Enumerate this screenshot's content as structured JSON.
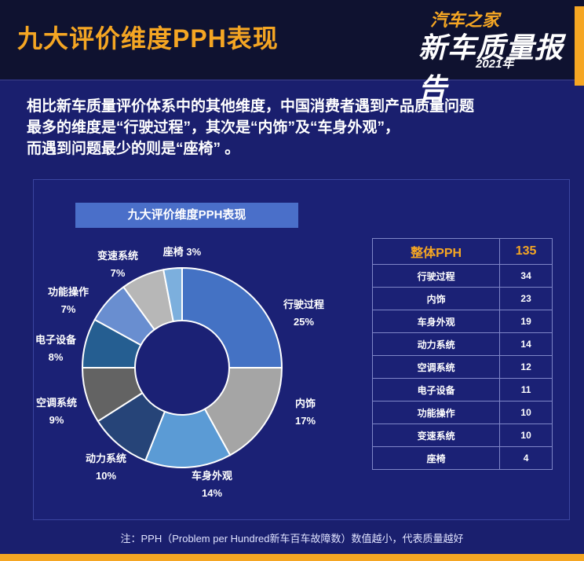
{
  "header": {
    "title": "九大评价维度PPH表现",
    "brand_sub": "汽车之家",
    "brand_main": "新车质量报告",
    "brand_year": "2021年"
  },
  "intro": {
    "line1": "相比新车质量评价体系中的其他维度，中国消费者遇到产品质量问题",
    "line2": "最多的维度是“行驶过程”，其次是“内饰”及“车身外观”，",
    "line3": "而遇到问题最少的则是“座椅” 。"
  },
  "chart_data": {
    "type": "pie",
    "title": "九大评价维度PPH表现",
    "categories": [
      "行驶过程",
      "内饰",
      "车身外观",
      "动力系统",
      "空调系统",
      "电子设备",
      "功能操作",
      "变速系统",
      "座椅"
    ],
    "values": [
      25,
      17,
      14,
      10,
      9,
      8,
      7,
      7,
      3
    ],
    "value_labels": [
      "25%",
      "17%",
      "14%",
      "10%",
      "9%",
      "8%",
      "7%",
      "7%",
      "3%"
    ],
    "colors": [
      "#4472c4",
      "#a5a5a5",
      "#5b9bd5",
      "#264478",
      "#636363",
      "#255e91",
      "#698ed0",
      "#b7b7b7",
      "#7cafdd"
    ]
  },
  "table": {
    "header_label": "整体PPH",
    "header_value": "135",
    "rows": [
      {
        "label": "行驶过程",
        "value": "34"
      },
      {
        "label": "内饰",
        "value": "23"
      },
      {
        "label": "车身外观",
        "value": "19"
      },
      {
        "label": "动力系统",
        "value": "14"
      },
      {
        "label": "空调系统",
        "value": "12"
      },
      {
        "label": "电子设备",
        "value": "11"
      },
      {
        "label": "功能操作",
        "value": "10"
      },
      {
        "label": "变速系统",
        "value": "10"
      },
      {
        "label": "座椅",
        "value": "4"
      }
    ]
  },
  "footer": {
    "note": "注：PPH（Problem per Hundred新车百车故障数）数值越小，代表质量越好"
  }
}
